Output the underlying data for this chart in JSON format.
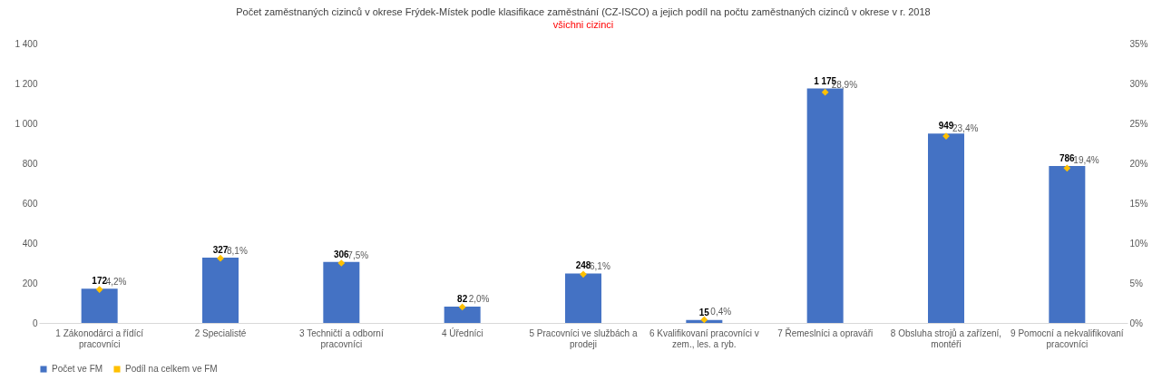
{
  "chart_data": {
    "type": "bar",
    "title": "Počet zaměstnaných cizinců v okrese Frýdek-Místek podle klasifikace zaměstnání (CZ-ISCO) a jejich podíl na počtu zaměstnaných cizinců v okrese v r. 2018",
    "subtitle": "všichni cizinci",
    "categories": [
      "1 Zákonodárci a řídící pracovníci",
      "2 Specialisté",
      "3 Techničtí a odborní pracovníci",
      "4 Úředníci",
      "5 Pracovníci ve službách a prodeji",
      "6 Kvalifikovaní pracovníci v zem., les. a ryb.",
      "7 Řemeslníci a opraváři",
      "8 Obsluha strojů a zařízení, montéři",
      "9 Pomocní a nekvalifikovaní pracovníci"
    ],
    "series": [
      {
        "name": "Počet ve FM",
        "color": "#4472c4",
        "values": [
          172,
          327,
          306,
          82,
          248,
          15,
          1175,
          949,
          786
        ],
        "value_labels": [
          "172",
          "327",
          "306",
          "82",
          "248",
          "15",
          "1 175",
          "949",
          "786"
        ]
      },
      {
        "name": "Podíl na celkem ve FM",
        "type": "scatter",
        "axis": "y2",
        "color": "#ffc000",
        "values": [
          4.2,
          8.1,
          7.5,
          2.0,
          6.1,
          0.4,
          28.9,
          23.4,
          19.4
        ],
        "value_labels": [
          "4,2%",
          "8,1%",
          "7,5%",
          "2,0%",
          "6,1%",
          "0,4%",
          "28,9%",
          "23,4%",
          "19,4%"
        ]
      }
    ],
    "ylim": [
      0,
      1400
    ],
    "yticks": [
      0,
      200,
      400,
      600,
      800,
      {
        "value": 1000,
        "label": "1 000"
      },
      {
        "value": 1200,
        "label": "1 200"
      },
      {
        "value": 1400,
        "label": "1 400"
      }
    ],
    "y2lim": [
      0,
      35
    ],
    "y2ticks": [
      {
        "value": 0,
        "label": "0%"
      },
      {
        "value": 5,
        "label": "5%"
      },
      {
        "value": 10,
        "label": "10%"
      },
      {
        "value": 15,
        "label": "15%"
      },
      {
        "value": 20,
        "label": "20%"
      },
      {
        "value": 25,
        "label": "25%"
      },
      {
        "value": 30,
        "label": "30%"
      },
      {
        "value": 35,
        "label": "35%"
      }
    ],
    "marker": "diamond",
    "legend": "bottom"
  }
}
